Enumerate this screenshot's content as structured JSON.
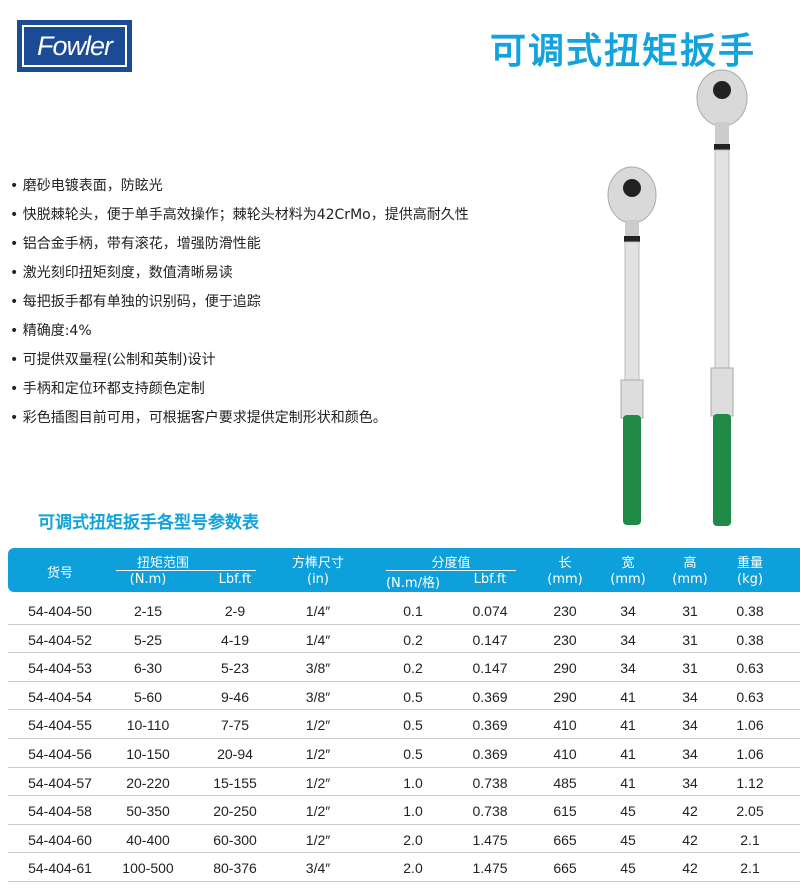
{
  "brand": {
    "logo_text": "Fowler"
  },
  "title": "可调式扭矩扳手",
  "features": [
    "磨砂电镀表面，防眩光",
    "快脱棘轮头，便于单手高效操作；棘轮头材料为42CrMo，提供高耐久性",
    "铝合金手柄，带有滚花，增强防滑性能",
    "激光刻印扭矩刻度，数值清晰易读",
    "每把扳手都有单独的识别码，便于追踪",
    "精确度:4%",
    "可提供双量程(公制和英制)设计",
    "手柄和定位环都支持颜色定制",
    "彩色插图目前可用，可根据客户要求提供定制形状和颜色。"
  ],
  "table_title": "可调式扭矩扳手各型号参数表",
  "colors": {
    "accent": "#0ea0da",
    "brand": "#1c4b95",
    "handle": "#1e8a45"
  },
  "table": {
    "headers": {
      "model": "货号",
      "torque": "扭矩范围",
      "torque_nm": "(N.m)",
      "torque_lbf": "Lbf.ft",
      "drive": "方榫尺寸",
      "drive_unit": "(in)",
      "div": "分度值",
      "div_nm": "(N.m/格)",
      "div_lbf": "Lbf.ft",
      "len": "长",
      "len_u": "(mm)",
      "wid": "宽",
      "wid_u": "(mm)",
      "hei": "高",
      "hei_u": "(mm)",
      "wt": "重量",
      "wt_u": "(kg)"
    },
    "rows": [
      [
        "54-404-50",
        "2-15",
        "2-9",
        "1/4″",
        "0.1",
        "0.074",
        "230",
        "34",
        "31",
        "0.38"
      ],
      [
        "54-404-52",
        "5-25",
        "4-19",
        "1/4″",
        "0.2",
        "0.147",
        "230",
        "34",
        "31",
        "0.38"
      ],
      [
        "54-404-53",
        "6-30",
        "5-23",
        "3/8″",
        "0.2",
        "0.147",
        "290",
        "34",
        "31",
        "0.63"
      ],
      [
        "54-404-54",
        "5-60",
        "9-46",
        "3/8″",
        "0.5",
        "0.369",
        "290",
        "41",
        "34",
        "0.63"
      ],
      [
        "54-404-55",
        "10-110",
        "7-75",
        "1/2″",
        "0.5",
        "0.369",
        "410",
        "41",
        "34",
        "1.06"
      ],
      [
        "54-404-56",
        "10-150",
        "20-94",
        "1/2″",
        "0.5",
        "0.369",
        "410",
        "41",
        "34",
        "1.06"
      ],
      [
        "54-404-57",
        "20-220",
        "15-155",
        "1/2″",
        "1.0",
        "0.738",
        "485",
        "41",
        "34",
        "1.12"
      ],
      [
        "54-404-58",
        "50-350",
        "20-250",
        "1/2″",
        "1.0",
        "0.738",
        "615",
        "45",
        "42",
        "2.05"
      ],
      [
        "54-404-60",
        "40-400",
        "60-300",
        "1/2″",
        "2.0",
        "1.475",
        "665",
        "45",
        "42",
        "2.1"
      ],
      [
        "54-404-61",
        "100-500",
        "80-376",
        "3/4″",
        "2.0",
        "1.475",
        "665",
        "45",
        "42",
        "2.1"
      ]
    ]
  }
}
